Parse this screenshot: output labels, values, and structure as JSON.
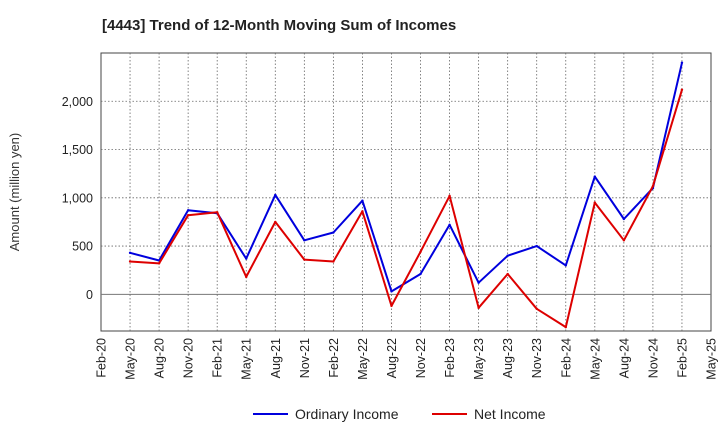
{
  "chart_data": {
    "type": "line",
    "title": "[4443]  Trend of 12-Month Moving Sum of Incomes",
    "xlabel": "",
    "ylabel": "Amount (million yen)",
    "ylim": [
      -380,
      2500
    ],
    "yticks": [
      0,
      500,
      1000,
      1500,
      2000
    ],
    "ytick_labels": [
      "0",
      "500",
      "1,000",
      "1,500",
      "2,000"
    ],
    "grid": true,
    "legend_position": "bottom-center",
    "categories": [
      "Feb-20",
      "May-20",
      "Aug-20",
      "Nov-20",
      "Feb-21",
      "May-21",
      "Aug-21",
      "Nov-21",
      "Feb-22",
      "May-22",
      "Aug-22",
      "Nov-22",
      "Feb-23",
      "May-23",
      "Aug-23",
      "Nov-23",
      "Feb-24",
      "May-24",
      "Aug-24",
      "Nov-24",
      "Feb-25",
      "May-25"
    ],
    "series": [
      {
        "name": "Ordinary Income",
        "color": "#0000dd",
        "values": [
          null,
          430,
          350,
          870,
          840,
          370,
          1030,
          560,
          640,
          970,
          30,
          210,
          720,
          120,
          400,
          500,
          300,
          1220,
          780,
          1100,
          2400,
          null
        ]
      },
      {
        "name": "Net Income",
        "color": "#dd0000",
        "values": [
          null,
          340,
          320,
          820,
          850,
          180,
          750,
          360,
          340,
          860,
          -120,
          440,
          1020,
          -140,
          210,
          -150,
          -340,
          950,
          560,
          1120,
          2120,
          null
        ]
      }
    ]
  }
}
